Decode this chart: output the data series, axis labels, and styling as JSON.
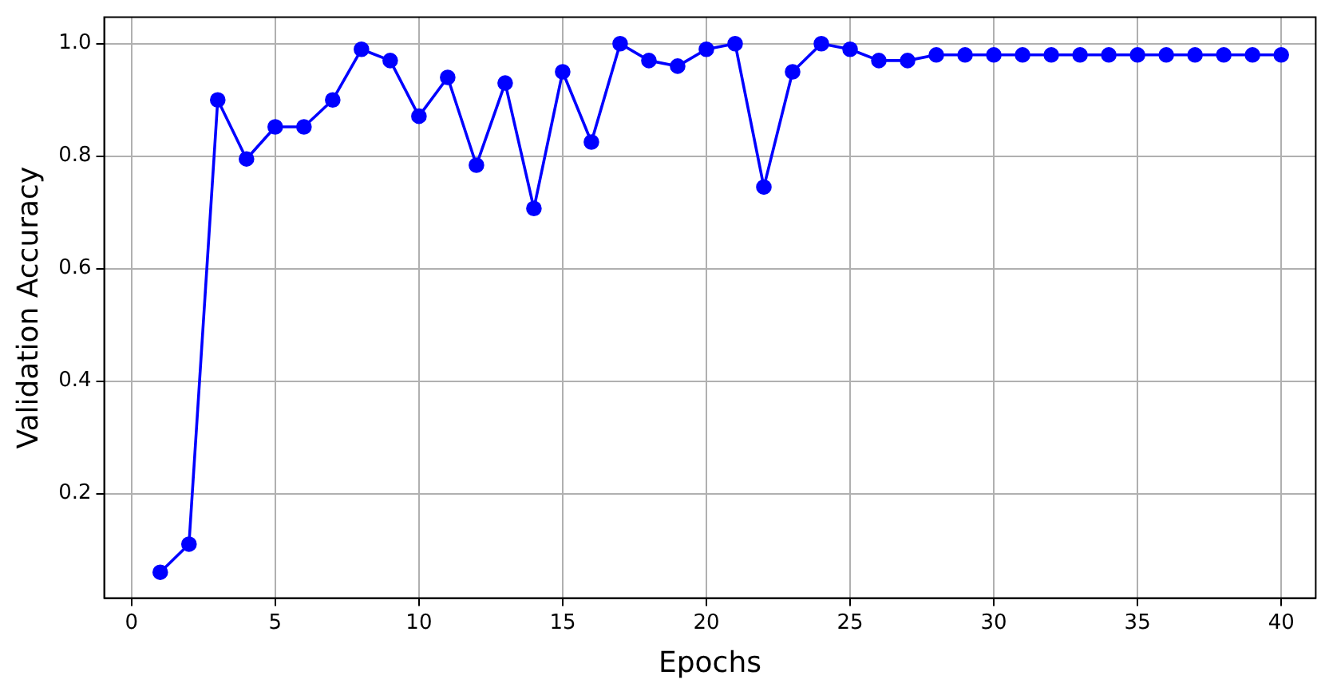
{
  "chart_data": {
    "type": "line",
    "xlabel": "Epochs",
    "ylabel": "Validation Accuracy",
    "x": [
      1,
      2,
      3,
      4,
      5,
      6,
      7,
      8,
      9,
      10,
      11,
      12,
      13,
      14,
      15,
      16,
      17,
      18,
      19,
      20,
      21,
      22,
      23,
      24,
      25,
      26,
      27,
      28,
      29,
      30,
      31,
      32,
      33,
      34,
      35,
      36,
      37,
      38,
      39,
      40
    ],
    "series": [
      {
        "color": "#0000ff",
        "values": [
          0.06,
          0.11,
          0.9,
          0.795,
          0.852,
          0.852,
          0.9,
          0.99,
          0.97,
          0.871,
          0.94,
          0.784,
          0.93,
          0.707,
          0.95,
          0.825,
          1.0,
          0.97,
          0.96,
          0.99,
          1.0,
          0.745,
          0.95,
          1.0,
          0.99,
          0.97,
          0.97,
          0.98,
          0.98,
          0.98,
          0.98,
          0.98,
          0.98,
          0.98,
          0.98,
          0.98,
          0.98,
          0.98,
          0.98,
          0.98
        ]
      }
    ],
    "xlim": [
      -0.95,
      41.2
    ],
    "ylim": [
      0.014,
      1.047
    ],
    "xticks": [
      0,
      5,
      10,
      15,
      20,
      25,
      30,
      35,
      40
    ],
    "yticks": [
      0.2,
      0.4,
      0.6,
      0.8,
      {
        "value": 1,
        "label": "1.0"
      }
    ],
    "grid": true,
    "marker": "circle",
    "line_style": "solid"
  }
}
